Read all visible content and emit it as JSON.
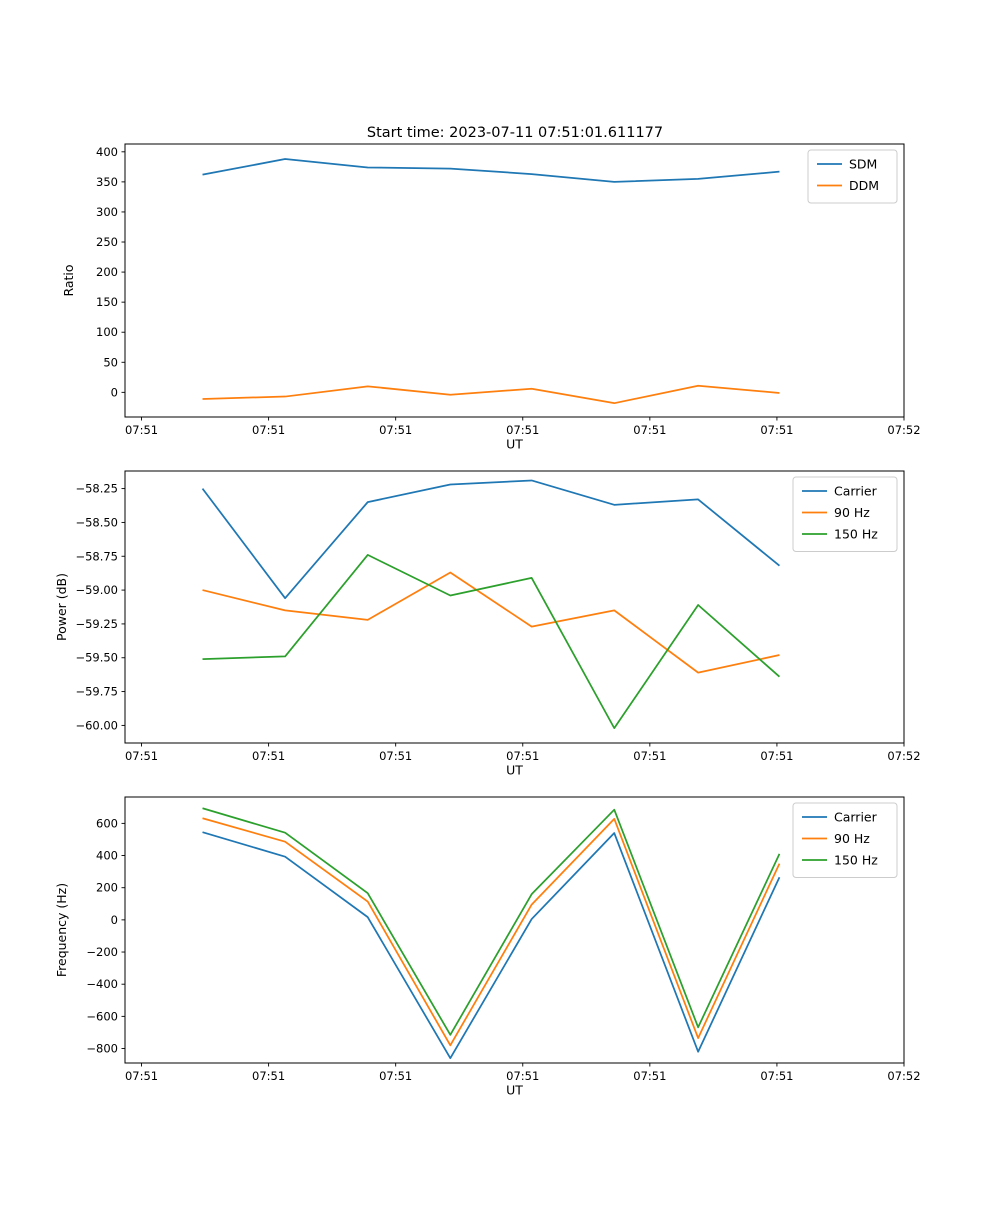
{
  "figure": {
    "title": "Start time: 2023-07-11 07:51:01.611177",
    "background_color": "#ffffff",
    "spine_color": "#000000"
  },
  "palette": {
    "blue": "#1f77b4",
    "orange": "#ff7f0e",
    "green": "#2ca02c"
  },
  "chart_data": [
    {
      "id": "ratio",
      "type": "line",
      "title": "Start time: 2023-07-11 07:51:01.611177",
      "xlabel": "UT",
      "ylabel": "Ratio",
      "grid": false,
      "legend_position": "upper right",
      "xlim": [
        -1.3,
        60
      ],
      "ylim": [
        -41,
        413
      ],
      "x_units": "seconds after 07:51:00 UT",
      "x": [
        4.8,
        11.3,
        17.8,
        24.3,
        30.7,
        37.2,
        43.8,
        50.2
      ],
      "x_ticks": {
        "values": [
          0,
          10,
          20,
          30,
          40,
          50,
          60
        ],
        "labels": [
          "07:51",
          "07:51",
          "07:51",
          "07:51",
          "07:51",
          "07:51",
          "07:52"
        ]
      },
      "y_ticks": {
        "values": [
          0,
          50,
          100,
          150,
          200,
          250,
          300,
          350,
          400
        ],
        "labels": [
          "0",
          "50",
          "100",
          "150",
          "200",
          "250",
          "300",
          "350",
          "400"
        ]
      },
      "series": [
        {
          "name": "SDM",
          "color": "#1f77b4",
          "values": [
            362,
            388,
            374,
            372,
            363,
            350,
            355,
            367
          ]
        },
        {
          "name": "DDM",
          "color": "#ff7f0e",
          "values": [
            -11,
            -7,
            10,
            -4,
            6,
            -18,
            11,
            -1
          ]
        }
      ]
    },
    {
      "id": "power",
      "type": "line",
      "title": "",
      "xlabel": "UT",
      "ylabel": "Power (dB)",
      "grid": false,
      "legend_position": "upper right",
      "xlim": [
        -1.3,
        60
      ],
      "ylim": [
        -60.13,
        -58.12
      ],
      "x_units": "seconds after 07:51:00 UT",
      "x": [
        4.8,
        11.3,
        17.8,
        24.3,
        30.7,
        37.2,
        43.8,
        50.2
      ],
      "x_ticks": {
        "values": [
          0,
          10,
          20,
          30,
          40,
          50,
          60
        ],
        "labels": [
          "07:51",
          "07:51",
          "07:51",
          "07:51",
          "07:51",
          "07:51",
          "07:52"
        ]
      },
      "y_ticks": {
        "values": [
          -60.0,
          -59.75,
          -59.5,
          -59.25,
          -59.0,
          -58.75,
          -58.5,
          -58.25
        ],
        "labels": [
          "−60.00",
          "−59.75",
          "−59.50",
          "−59.25",
          "−59.00",
          "−58.75",
          "−58.50",
          "−58.25"
        ]
      },
      "series": [
        {
          "name": "Carrier",
          "color": "#1f77b4",
          "values": [
            -58.25,
            -59.06,
            -58.35,
            -58.22,
            -58.19,
            -58.37,
            -58.33,
            -58.82
          ]
        },
        {
          "name": "90 Hz",
          "color": "#ff7f0e",
          "values": [
            -59.0,
            -59.15,
            -59.22,
            -58.87,
            -59.27,
            -59.15,
            -59.61,
            -59.48
          ]
        },
        {
          "name": "150 Hz",
          "color": "#2ca02c",
          "values": [
            -59.51,
            -59.49,
            -58.74,
            -59.04,
            -58.91,
            -60.02,
            -59.11,
            -59.64
          ]
        }
      ]
    },
    {
      "id": "frequency",
      "type": "line",
      "title": "",
      "xlabel": "UT",
      "ylabel": "Frequency (Hz)",
      "grid": false,
      "legend_position": "upper right",
      "xlim": [
        -1.3,
        60
      ],
      "ylim": [
        -890,
        764
      ],
      "x_units": "seconds after 07:51:00 UT",
      "x": [
        4.8,
        11.3,
        17.8,
        24.3,
        30.7,
        37.2,
        43.8,
        50.2
      ],
      "x_ticks": {
        "values": [
          0,
          10,
          20,
          30,
          40,
          50,
          60
        ],
        "labels": [
          "07:51",
          "07:51",
          "07:51",
          "07:51",
          "07:51",
          "07:51",
          "07:52"
        ]
      },
      "y_ticks": {
        "values": [
          -800,
          -600,
          -400,
          -200,
          0,
          200,
          400,
          600
        ],
        "labels": [
          "−800",
          "−600",
          "−400",
          "−200",
          "0",
          "200",
          "400",
          "600"
        ]
      },
      "series": [
        {
          "name": "Carrier",
          "color": "#1f77b4",
          "values": [
            545,
            393,
            17,
            -860,
            5,
            540,
            -820,
            265
          ]
        },
        {
          "name": "90 Hz",
          "color": "#ff7f0e",
          "values": [
            632,
            486,
            114,
            -780,
            95,
            628,
            -735,
            350
          ]
        },
        {
          "name": "150 Hz",
          "color": "#2ca02c",
          "values": [
            694,
            542,
            166,
            -715,
            160,
            685,
            -668,
            410
          ]
        }
      ]
    }
  ]
}
